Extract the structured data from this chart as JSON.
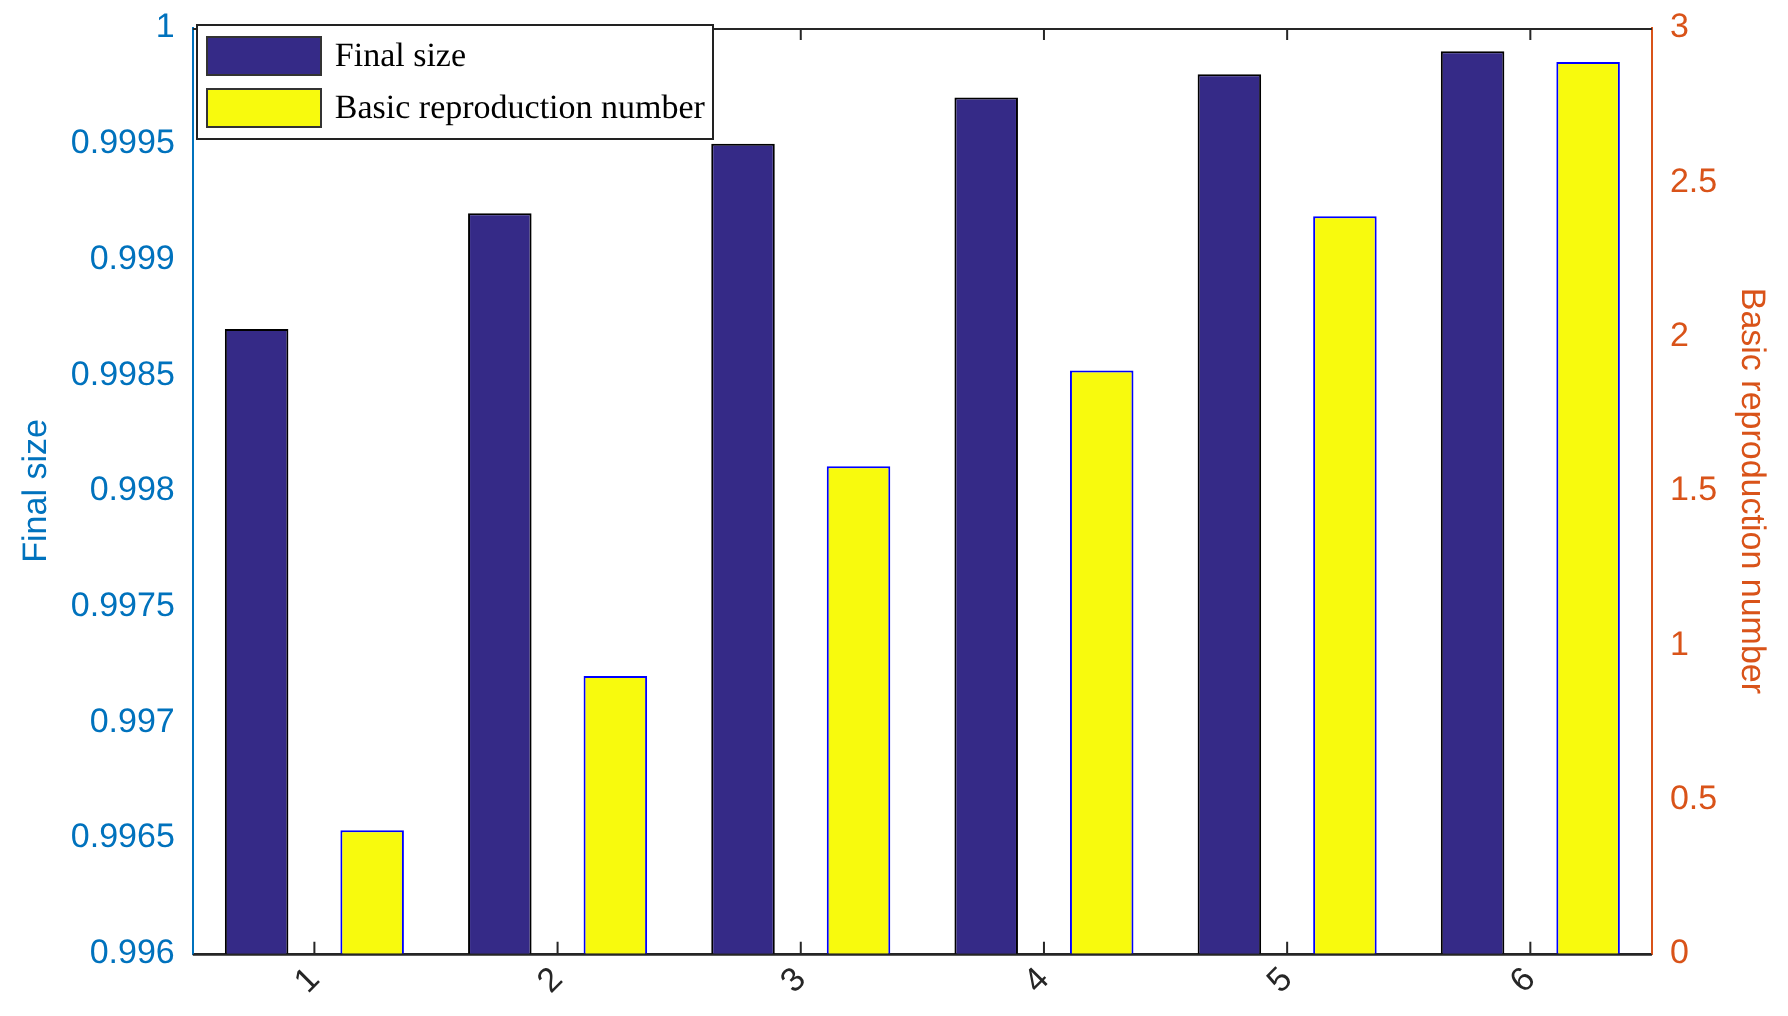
{
  "chart_data": {
    "type": "bar",
    "categories": [
      "1",
      "2",
      "3",
      "4",
      "5",
      "6"
    ],
    "ylabel": "Final size",
    "y2label": "Basic reproduction number",
    "ylim": [
      0.996,
      1
    ],
    "yticks": [
      0.996,
      0.9965,
      0.997,
      0.9975,
      0.998,
      0.9985,
      0.999,
      0.9995,
      1
    ],
    "y2lim": [
      0,
      3
    ],
    "y2ticks": [
      0,
      0.5,
      1,
      1.5,
      2,
      2.5,
      3
    ],
    "legend": "top left",
    "grid": false,
    "series": [
      {
        "name": "Final size",
        "color": "#352a87",
        "values": [
          0.9987,
          0.9992,
          0.9995,
          0.9997,
          0.9998,
          0.9999
        ]
      },
      {
        "name": "Basic reproduction number",
        "color": "#f8fa0d",
        "axis": "y2",
        "values": [
          0.4,
          0.9,
          1.58,
          1.89,
          2.39,
          2.89
        ]
      }
    ]
  }
}
